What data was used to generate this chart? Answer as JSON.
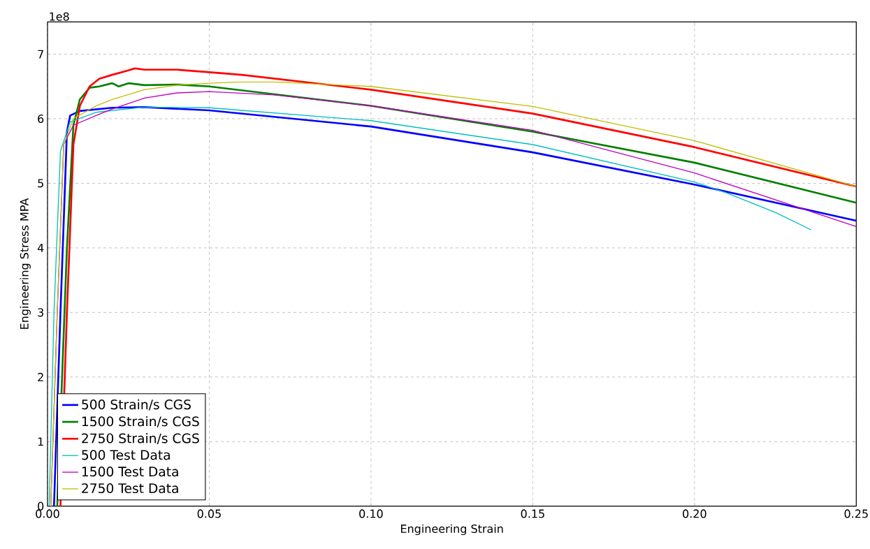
{
  "chart_data": {
    "type": "line",
    "xlabel": "Engineering Strain",
    "ylabel": "Engineering Stress MPA",
    "annotations": [
      "1e8"
    ],
    "xlim": [
      0,
      0.25
    ],
    "ylim": [
      0,
      7.5
    ],
    "xticks": [
      {
        "value": 0,
        "label": "0.00"
      },
      {
        "value": 0.05,
        "label": "0.05"
      },
      {
        "value": 0.1,
        "label": "0.10"
      },
      {
        "value": 0.15,
        "label": "0.15"
      },
      {
        "value": 0.2,
        "label": "0.20"
      },
      {
        "value": 0.25,
        "label": "0.25"
      }
    ],
    "yticks": [
      0,
      1,
      2,
      3,
      4,
      5,
      6,
      7
    ],
    "grid": true,
    "legend": "bottom left",
    "line_style": "solid",
    "marker": "none",
    "series": [
      {
        "name": "500 Strain/s CGS",
        "color": "#0000ff",
        "x": [
          0.002,
          0.004,
          0.006,
          0.007,
          0.01,
          0.02,
          0.03,
          0.05,
          0.1,
          0.15,
          0.2,
          0.25
        ],
        "values": [
          0,
          3,
          5.8,
          6.05,
          6.12,
          6.17,
          6.18,
          6.13,
          5.88,
          5.48,
          4.98,
          4.42
        ]
      },
      {
        "name": "1500 Strain/s CGS",
        "color": "#008000",
        "x": [
          0.003,
          0.006,
          0.008,
          0.01,
          0.013,
          0.016,
          0.02,
          0.022,
          0.025,
          0.03,
          0.04,
          0.05,
          0.1,
          0.15,
          0.2,
          0.25
        ],
        "values": [
          0,
          4,
          5.9,
          6.3,
          6.48,
          6.5,
          6.55,
          6.5,
          6.55,
          6.52,
          6.53,
          6.5,
          6.2,
          5.8,
          5.32,
          4.7
        ]
      },
      {
        "name": "2750 Strain/s CGS",
        "color": "#ff0000",
        "x": [
          0.004,
          0.006,
          0.008,
          0.01,
          0.013,
          0.016,
          0.02,
          0.025,
          0.027,
          0.03,
          0.04,
          0.05,
          0.06,
          0.1,
          0.15,
          0.2,
          0.25
        ],
        "values": [
          0,
          3,
          5.6,
          6.2,
          6.5,
          6.62,
          6.68,
          6.75,
          6.78,
          6.76,
          6.76,
          6.72,
          6.68,
          6.45,
          6.08,
          5.56,
          4.95
        ]
      },
      {
        "name": "500 Test Data",
        "color": "#00bfbf",
        "x": [
          0.0005,
          0.002,
          0.004,
          0.007,
          0.015,
          0.03,
          0.05,
          0.1,
          0.15,
          0.2,
          0.21,
          0.225,
          0.236
        ],
        "values": [
          0,
          3,
          5.5,
          5.95,
          6.1,
          6.18,
          6.17,
          5.97,
          5.6,
          5.02,
          4.85,
          4.55,
          4.28
        ]
      },
      {
        "name": "1500 Test Data",
        "color": "#bf00bf",
        "x": [
          0.001,
          0.003,
          0.005,
          0.008,
          0.015,
          0.02,
          0.03,
          0.04,
          0.05,
          0.07,
          0.1,
          0.15,
          0.2,
          0.25
        ],
        "values": [
          0,
          3,
          5.6,
          5.9,
          6.05,
          6.15,
          6.32,
          6.4,
          6.42,
          6.37,
          6.2,
          5.82,
          5.16,
          4.33
        ]
      },
      {
        "name": "2750 Test Data",
        "color": "#bfbf00",
        "x": [
          0.001,
          0.003,
          0.005,
          0.008,
          0.015,
          0.02,
          0.03,
          0.04,
          0.05,
          0.06,
          0.07,
          0.1,
          0.15,
          0.2,
          0.25
        ],
        "values": [
          0,
          3,
          5.6,
          6.0,
          6.2,
          6.3,
          6.45,
          6.52,
          6.55,
          6.57,
          6.57,
          6.5,
          6.19,
          5.66,
          4.95
        ]
      }
    ]
  }
}
